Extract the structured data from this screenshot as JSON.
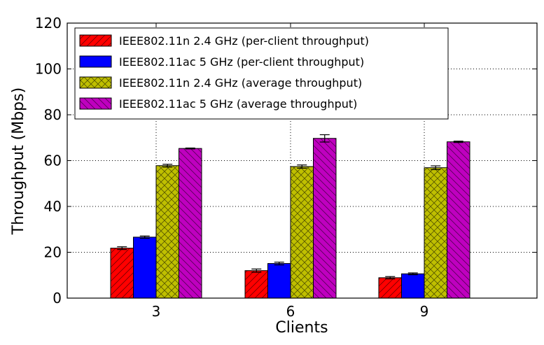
{
  "chart_data": {
    "type": "bar",
    "title": "",
    "xlabel": "Clients",
    "ylabel": "Throughput (Mbps)",
    "categories": [
      "3",
      "6",
      "9"
    ],
    "ylim": [
      0,
      120
    ],
    "yticks": [
      "0",
      "20",
      "40",
      "60",
      "80",
      "100",
      "120"
    ],
    "grid": true,
    "legend_position": "top-left",
    "series": [
      {
        "name": "IEEE802.11n 2.4 GHz (per-client throughput)",
        "values": [
          21.8,
          12.0,
          8.9
        ],
        "errors": [
          0.6,
          0.7,
          0.5
        ],
        "color": "#ff0000",
        "hatch": "diagonal"
      },
      {
        "name": "IEEE802.11ac 5 GHz  (per-client throughput)",
        "values": [
          26.6,
          15.1,
          10.6
        ],
        "errors": [
          0.5,
          0.6,
          0.4
        ],
        "color": "#0000ff",
        "hatch": "none"
      },
      {
        "name": "IEEE802.11n 2.4 GHz  (average throughput)",
        "values": [
          57.8,
          57.4,
          56.9
        ],
        "errors": [
          0.6,
          0.7,
          0.8
        ],
        "color": "#bfbf00",
        "hatch": "crosshatch"
      },
      {
        "name": "IEEE802.11ac 5 GHz  (average throughput)",
        "values": [
          65.3,
          69.7,
          68.2
        ],
        "errors": [
          0.2,
          1.6,
          0.3
        ],
        "color": "#bf00bf",
        "hatch": "backslash"
      }
    ]
  }
}
